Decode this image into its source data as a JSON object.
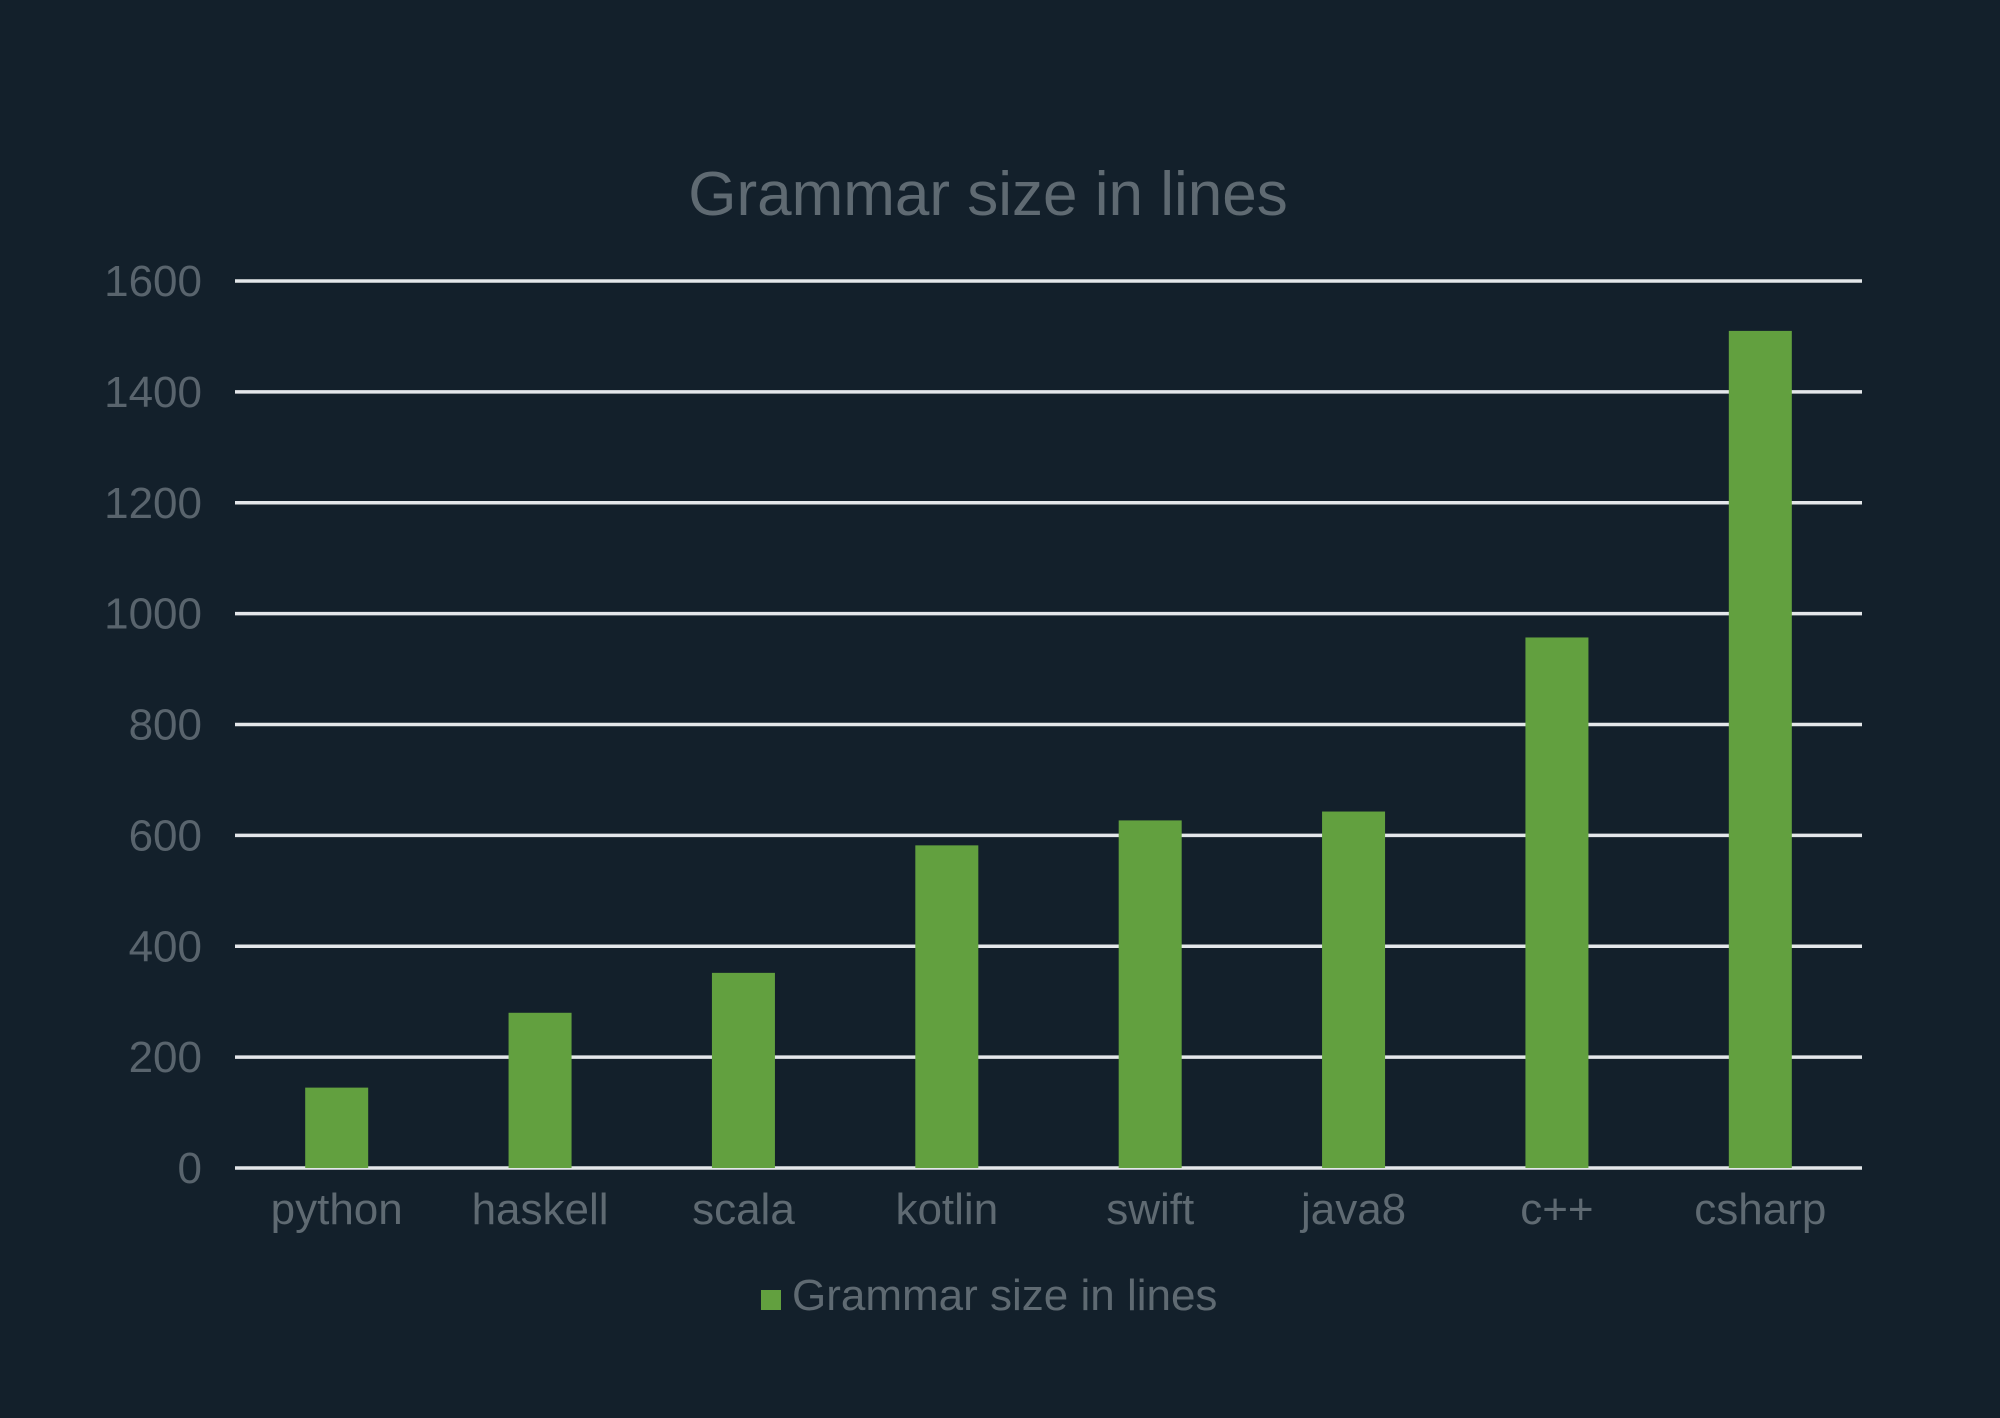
{
  "chart_data": {
    "type": "bar",
    "title": "Grammar size in lines",
    "xlabel": "",
    "ylabel": "",
    "categories": [
      "python",
      "haskell",
      "scala",
      "kotlin",
      "swift",
      "java8",
      "c++",
      "csharp"
    ],
    "series": [
      {
        "name": "Grammar size in lines",
        "values": [
          145,
          280,
          352,
          582,
          627,
          643,
          957,
          1510
        ],
        "color": "#62a03f"
      }
    ],
    "ylim": [
      0,
      1600
    ],
    "yticks": [
      "0",
      "200",
      "400",
      "600",
      "800",
      "1000",
      "1200",
      "1400",
      "1600"
    ],
    "grid": true,
    "legend": "bottom-center"
  },
  "colors": {
    "background": "#13202b",
    "gridline": "#e4e7ea",
    "text": "#5f6a72",
    "bar": "#62a03f"
  }
}
